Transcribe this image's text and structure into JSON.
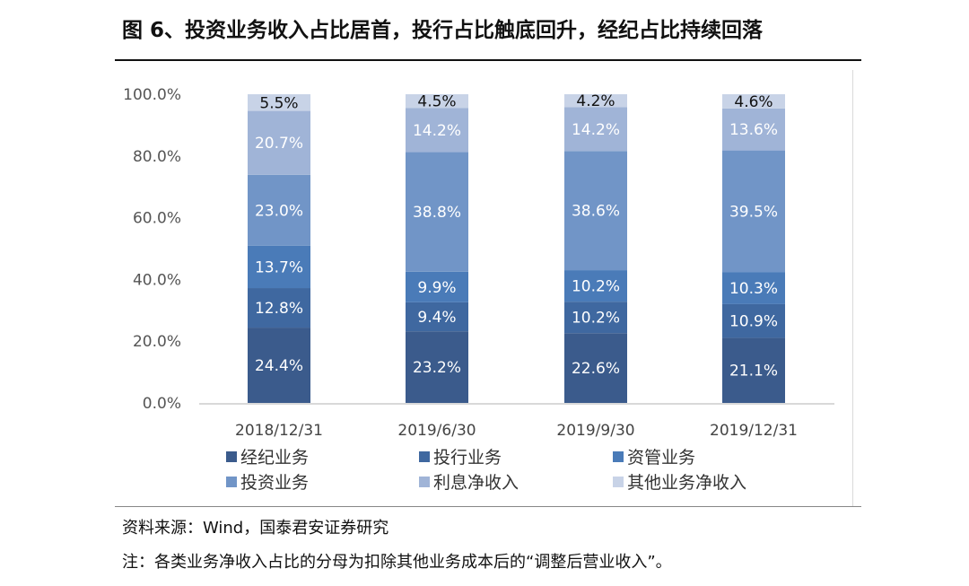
{
  "title": "图 6、投资业务收入占比居首，投行占比触底回升，经纪占比持续回落",
  "source": "资料来源：Wind，国泰君安证券研究",
  "note": "注：各类业务净收入占比的分母为扣除其他业务成本后的“调整后营业收入”。",
  "chart_data": {
    "type": "bar",
    "stacked": true,
    "categories": [
      "2018/12/31",
      "2019/6/30",
      "2019/9/30",
      "2019/12/31"
    ],
    "ylim": [
      0,
      100
    ],
    "yticks": [
      "0.0%",
      "20.0%",
      "40.0%",
      "60.0%",
      "80.0%",
      "100.0%"
    ],
    "legend_position": "bottom",
    "series": [
      {
        "name": "经纪业务",
        "color": "#3b5b8c",
        "label_color": "#ffffff",
        "values": [
          24.4,
          23.2,
          22.6,
          21.1
        ]
      },
      {
        "name": "投行业务",
        "color": "#3f68a0",
        "label_color": "#ffffff",
        "values": [
          12.8,
          9.4,
          10.2,
          10.9
        ]
      },
      {
        "name": "资管业务",
        "color": "#4a7bb8",
        "label_color": "#ffffff",
        "values": [
          13.7,
          9.9,
          10.2,
          10.3
        ]
      },
      {
        "name": "投资业务",
        "color": "#7195c7",
        "label_color": "#ffffff",
        "values": [
          23.0,
          38.8,
          38.6,
          39.5
        ]
      },
      {
        "name": "利息净收入",
        "color": "#a0b4d7",
        "label_color": "#ffffff",
        "values": [
          20.7,
          14.2,
          14.2,
          13.6
        ]
      },
      {
        "name": "其他业务净收入",
        "color": "#c8d3e7",
        "label_color": "#111111",
        "values": [
          5.5,
          4.5,
          4.2,
          4.6
        ]
      }
    ]
  }
}
